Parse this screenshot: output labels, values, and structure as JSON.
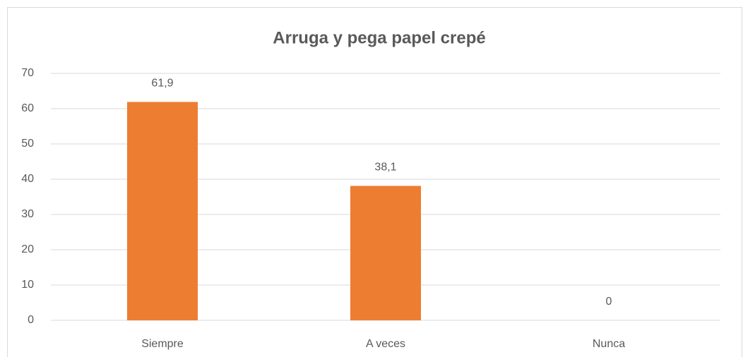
{
  "chart_data": {
    "type": "bar",
    "title": "Arruga y pega papel crepé",
    "categories": [
      "Siempre",
      "A veces",
      "Nunca"
    ],
    "values": [
      61.9,
      38.1,
      0
    ],
    "value_labels": [
      "61,9",
      "38,1",
      "0"
    ],
    "color": "#ed7d31",
    "ylim": [
      0,
      70
    ],
    "yticks": [
      0,
      10,
      20,
      30,
      40,
      50,
      60,
      70
    ],
    "grid": true
  }
}
